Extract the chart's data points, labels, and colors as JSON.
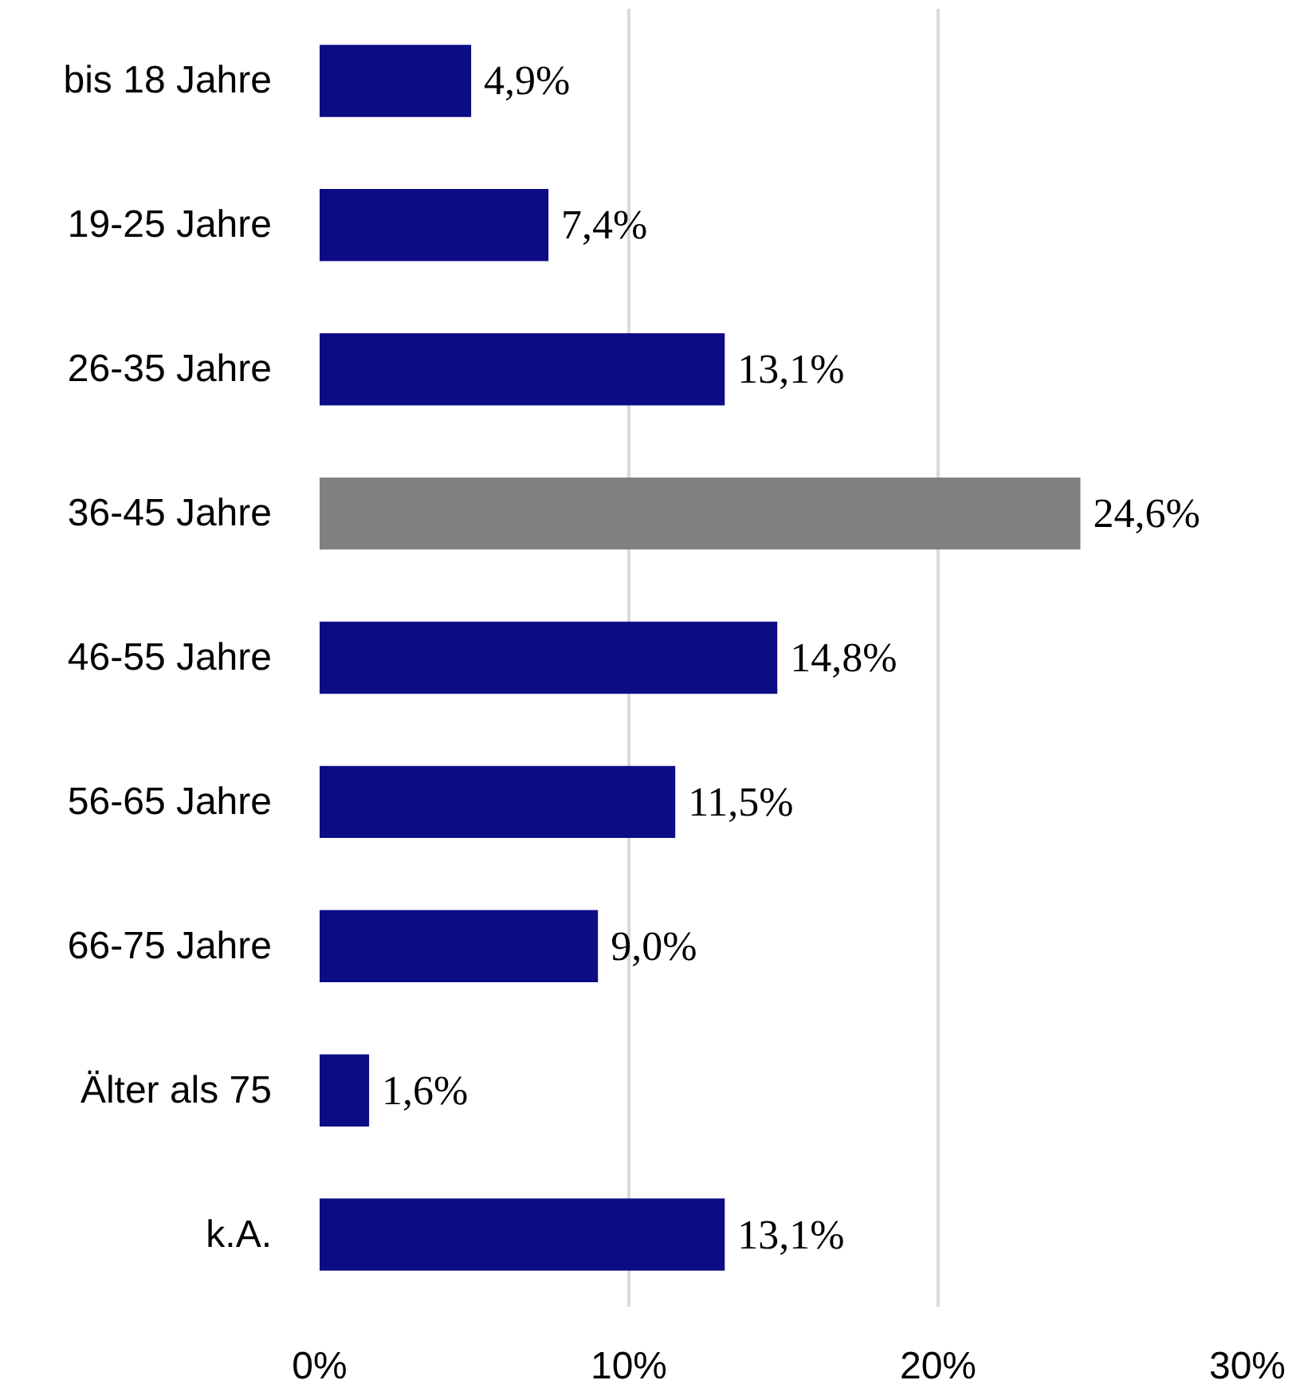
{
  "chart_data": {
    "type": "bar",
    "orientation": "horizontal",
    "categories": [
      "bis 18 Jahre",
      "19-25 Jahre",
      "26-35 Jahre",
      "36-45 Jahre",
      "46-55 Jahre",
      "56-65 Jahre",
      "66-75 Jahre",
      "Älter als 75",
      "k.A."
    ],
    "values": [
      4.9,
      7.4,
      13.1,
      24.6,
      14.8,
      11.5,
      9.0,
      1.6,
      13.1
    ],
    "colors": [
      "#0c0c85",
      "#0c0c85",
      "#0c0c85",
      "#808080",
      "#0c0c85",
      "#0c0c85",
      "#0c0c85",
      "#0c0c85",
      "#0c0c85"
    ],
    "value_labels": [
      "4,9%",
      "7,4%",
      "13,1%",
      "24,6%",
      "14,8%",
      "11,5%",
      "9,0%",
      "1,6%",
      "13,1%"
    ],
    "xlim": [
      0,
      30
    ],
    "xticks": [
      {
        "value": 0,
        "label": "0%"
      },
      {
        "value": 10,
        "label": "10%"
      },
      {
        "value": 20,
        "label": "20%"
      },
      {
        "value": 30,
        "label": "30%"
      }
    ],
    "grid": "x"
  }
}
